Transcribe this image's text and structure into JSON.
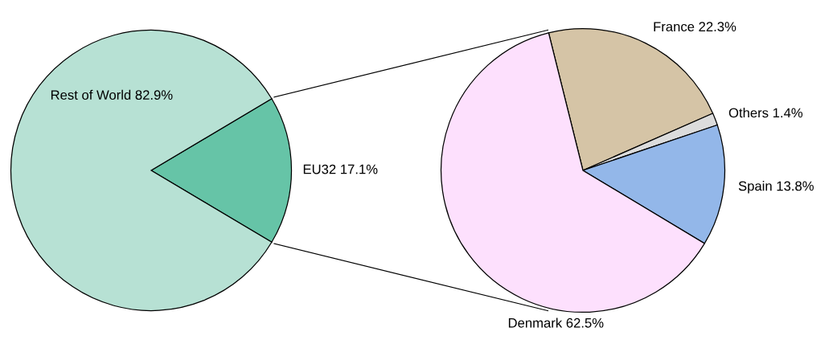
{
  "chart_data": [
    {
      "type": "pie",
      "categories": [
        "EU32",
        "Rest of World"
      ],
      "values": [
        17.1,
        82.9
      ],
      "colors": [
        "#66c4a7",
        "#b7e1d4"
      ],
      "value_labels": [
        "17.1%",
        "82.9%"
      ]
    },
    {
      "type": "pie",
      "categories": [
        "France",
        "Others",
        "Spain",
        "Denmark"
      ],
      "values": [
        22.3,
        1.4,
        13.8,
        62.5
      ],
      "colors": [
        "#d5c4a6",
        "#dcdcdc",
        "#93b7e9",
        "#fde0fd"
      ],
      "value_labels": [
        "22.3%",
        "1.4%",
        "13.8%",
        "62.5%"
      ]
    }
  ]
}
